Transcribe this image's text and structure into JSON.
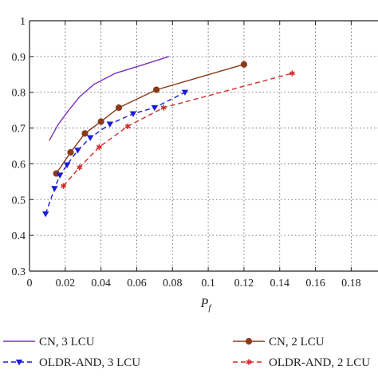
{
  "chart_data": {
    "type": "line",
    "title": "",
    "xlabel": "P",
    "xlabel_subscript": "f",
    "ylabel": "",
    "xlim": [
      0,
      0.195
    ],
    "ylim": [
      0.3,
      1.0
    ],
    "xticks": [
      0,
      0.02,
      0.04,
      0.06,
      0.08,
      0.1,
      0.12,
      0.14,
      0.16,
      0.18
    ],
    "xtick_labels": [
      "0",
      "0.02",
      "0.04",
      "0.06",
      "0.08",
      "0.1",
      "0.12",
      "0.14",
      "0.16",
      "0.18"
    ],
    "yticks": [
      0.3,
      0.4,
      0.5,
      0.6,
      0.7,
      0.8,
      0.9,
      1.0
    ],
    "ytick_labels": [
      "0.3",
      "0.4",
      "0.5",
      "0.6",
      "0.7",
      "0.8",
      "0.9",
      "1"
    ],
    "grid": true,
    "legend_position": "bottom",
    "series": [
      {
        "name": "CN, 3 LCU",
        "color": "#7b2fbe",
        "line_style": "solid",
        "marker": "none",
        "points": [
          [
            0.011,
            0.665
          ],
          [
            0.016,
            0.71
          ],
          [
            0.022,
            0.75
          ],
          [
            0.028,
            0.787
          ],
          [
            0.036,
            0.822
          ],
          [
            0.048,
            0.853
          ],
          [
            0.063,
            0.876
          ],
          [
            0.078,
            0.9
          ]
        ]
      },
      {
        "name": "CN, 2 LCU",
        "color": "#8b3a1a",
        "line_style": "solid",
        "marker": "circle",
        "points": [
          [
            0.015,
            0.573
          ],
          [
            0.023,
            0.632
          ],
          [
            0.031,
            0.685
          ],
          [
            0.04,
            0.718
          ],
          [
            0.05,
            0.757
          ],
          [
            0.071,
            0.807
          ],
          [
            0.12,
            0.878
          ]
        ]
      },
      {
        "name": "OLDR-AND, 3 LCU",
        "color": "#1a1adb",
        "line_style": "dashed",
        "marker": "triangle-down",
        "points": [
          [
            0.009,
            0.46
          ],
          [
            0.014,
            0.531
          ],
          [
            0.017,
            0.568
          ],
          [
            0.021,
            0.597
          ],
          [
            0.027,
            0.638
          ],
          [
            0.034,
            0.673
          ],
          [
            0.045,
            0.711
          ],
          [
            0.058,
            0.74
          ],
          [
            0.07,
            0.757
          ],
          [
            0.087,
            0.8
          ]
        ]
      },
      {
        "name": "OLDR-AND, 2 LCU",
        "color": "#d42a2a",
        "line_style": "dashed",
        "marker": "star",
        "points": [
          [
            0.019,
            0.538
          ],
          [
            0.028,
            0.59
          ],
          [
            0.039,
            0.647
          ],
          [
            0.055,
            0.705
          ],
          [
            0.075,
            0.757
          ],
          [
            0.147,
            0.853
          ]
        ]
      }
    ]
  }
}
